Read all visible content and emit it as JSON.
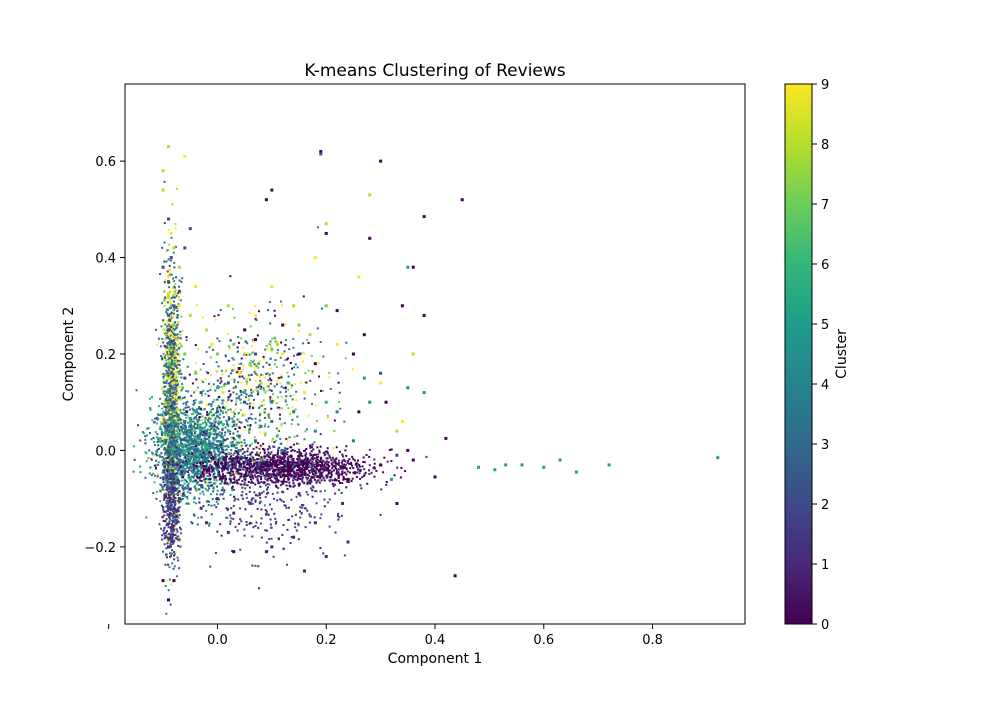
{
  "chart_data": {
    "type": "scatter",
    "title": "K-means Clustering of Reviews",
    "xlabel": "Component 1",
    "ylabel": "Component 2",
    "xlim": [
      -0.17,
      0.97
    ],
    "ylim": [
      -0.36,
      0.76
    ],
    "xticks": [
      -0.2,
      0.0,
      0.2,
      0.4,
      0.6,
      0.8
    ],
    "xtick_labels": [
      "",
      "0.0",
      "0.2",
      "0.4",
      "0.6",
      "0.8"
    ],
    "yticks": [
      -0.2,
      0.0,
      0.2,
      0.4,
      0.6
    ],
    "ytick_labels": [
      "−0.2",
      "0.0",
      "0.2",
      "0.4",
      "0.6"
    ],
    "grid": false,
    "colormap": "viridis",
    "colorbar": {
      "label": "Cluster",
      "min": 0,
      "max": 9,
      "ticks": [
        0,
        1,
        2,
        3,
        4,
        5,
        6,
        7,
        8,
        9
      ],
      "tick_labels": [
        "0",
        "1",
        "2",
        "3",
        "4",
        "5",
        "6",
        "7",
        "8",
        "9"
      ]
    },
    "clusters": [
      {
        "cluster": 0,
        "color": "#440154",
        "points": [
          [
            0.45,
            0.52
          ],
          [
            0.437,
            -0.26
          ],
          [
            0.42,
            0.025
          ],
          [
            0.4,
            -0.055
          ],
          [
            0.38,
            0.485
          ],
          [
            0.36,
            0.38
          ],
          [
            0.33,
            -0.11
          ],
          [
            0.34,
            0.3
          ],
          [
            0.3,
            0.6
          ],
          [
            0.38,
            0.28
          ],
          [
            0.27,
            0.24
          ],
          [
            0.22,
            0.29
          ],
          [
            0.24,
            -0.06
          ],
          [
            0.26,
            0.08
          ],
          [
            0.12,
            0.26
          ],
          [
            0.15,
            0.2
          ],
          [
            0.18,
            0.18
          ],
          [
            0.19,
            0.62
          ],
          [
            0.07,
            0.23
          ],
          [
            0.1,
            0.54
          ],
          [
            0.16,
            -0.25
          ],
          [
            0.05,
            0.25
          ],
          [
            0.03,
            -0.21
          ],
          [
            -0.09,
            -0.31
          ],
          [
            -0.08,
            -0.27
          ],
          [
            -0.1,
            -0.27
          ],
          [
            0.25,
            0.2
          ],
          [
            0.2,
            0.45
          ],
          [
            0.28,
            0.44
          ],
          [
            0.31,
            0.1
          ],
          [
            0.35,
            0.0
          ],
          [
            0.09,
            0.52
          ],
          [
            0.04,
            0.17
          ],
          [
            0.3,
            -0.03
          ],
          [
            0.36,
            -0.02
          ]
        ]
      },
      {
        "cluster": 1,
        "color": "#482878",
        "points": [
          [
            -0.08,
            -0.12
          ],
          [
            -0.08,
            -0.08
          ],
          [
            -0.09,
            -0.2
          ],
          [
            -0.085,
            -0.16
          ],
          [
            -0.07,
            -0.1
          ],
          [
            -0.05,
            -0.08
          ],
          [
            -0.03,
            -0.12
          ],
          [
            0.0,
            -0.1
          ],
          [
            0.03,
            -0.13
          ],
          [
            0.06,
            -0.11
          ],
          [
            0.1,
            -0.2
          ],
          [
            0.14,
            -0.18
          ],
          [
            0.18,
            -0.15
          ],
          [
            0.2,
            -0.22
          ],
          [
            0.24,
            -0.19
          ],
          [
            0.09,
            -0.21
          ],
          [
            0.02,
            -0.17
          ],
          [
            -0.02,
            -0.15
          ],
          [
            0.15,
            -0.09
          ],
          [
            0.23,
            -0.11
          ],
          [
            0.16,
            -0.25
          ]
        ]
      },
      {
        "cluster": 2,
        "color": "#3e4989",
        "points": [
          [
            -0.09,
            0.48
          ],
          [
            -0.085,
            0.4
          ],
          [
            -0.09,
            0.35
          ],
          [
            -0.08,
            0.3
          ],
          [
            -0.09,
            0.25
          ],
          [
            -0.085,
            0.2
          ],
          [
            -0.1,
            0.38
          ],
          [
            -0.07,
            0.33
          ],
          [
            -0.06,
            0.42
          ],
          [
            -0.08,
            0.1
          ],
          [
            -0.09,
            0.05
          ],
          [
            -0.06,
            0.15
          ],
          [
            -0.03,
            0.12
          ],
          [
            0.0,
            0.08
          ],
          [
            0.02,
            0.14
          ],
          [
            0.05,
            0.1
          ],
          [
            0.07,
            0.2
          ],
          [
            -0.05,
            0.46
          ],
          [
            0.19,
            0.615
          ],
          [
            0.3,
            0.16
          ],
          [
            0.33,
            -0.01
          ]
        ]
      },
      {
        "cluster": 3,
        "color": "#31688e",
        "points": [
          [
            -0.09,
            0.28
          ],
          [
            -0.08,
            0.22
          ],
          [
            -0.085,
            0.16
          ],
          [
            -0.07,
            0.11
          ],
          [
            -0.09,
            0.12
          ],
          [
            -0.06,
            0.06
          ],
          [
            -0.04,
            0.02
          ],
          [
            -0.02,
            0.04
          ],
          [
            0.01,
            0.0
          ],
          [
            0.04,
            0.03
          ],
          [
            -0.08,
            0.02
          ],
          [
            -0.09,
            0.0
          ],
          [
            -0.07,
            -0.02
          ],
          [
            -0.05,
            0.05
          ],
          [
            -0.03,
            -0.01
          ],
          [
            0.07,
            0.02
          ],
          [
            0.1,
            0.06
          ]
        ]
      },
      {
        "cluster": 4,
        "color": "#26828e",
        "points": [
          [
            -0.09,
            0.12
          ],
          [
            -0.08,
            0.06
          ],
          [
            -0.07,
            0.0
          ],
          [
            -0.06,
            -0.03
          ],
          [
            -0.04,
            -0.05
          ],
          [
            -0.02,
            -0.02
          ],
          [
            0.0,
            0.01
          ],
          [
            0.02,
            -0.03
          ],
          [
            0.04,
            0.0
          ],
          [
            0.06,
            -0.05
          ],
          [
            0.08,
            0.05
          ],
          [
            0.1,
            0.1
          ],
          [
            0.12,
            0.0
          ],
          [
            0.14,
            0.08
          ],
          [
            0.18,
            0.04
          ],
          [
            0.22,
            0.08
          ],
          [
            0.25,
            0.02
          ],
          [
            0.28,
            0.1
          ],
          [
            0.35,
            0.13
          ],
          [
            0.38,
            0.12
          ]
        ]
      },
      {
        "cluster": 5,
        "color": "#1f9e89",
        "points": [
          [
            0.92,
            -0.015
          ],
          [
            0.72,
            -0.03
          ],
          [
            0.66,
            -0.045
          ],
          [
            0.63,
            -0.02
          ],
          [
            0.6,
            -0.035
          ],
          [
            0.56,
            -0.03
          ],
          [
            0.53,
            -0.03
          ],
          [
            0.51,
            -0.04
          ],
          [
            0.48,
            -0.035
          ],
          [
            0.35,
            0.38
          ],
          [
            0.32,
            -0.06
          ],
          [
            0.27,
            0.15
          ],
          [
            -0.06,
            -0.04
          ],
          [
            -0.04,
            0.08
          ],
          [
            0.0,
            -0.04
          ],
          [
            0.03,
            0.06
          ],
          [
            -0.08,
            0.18
          ]
        ]
      },
      {
        "cluster": 6,
        "color": "#35b779",
        "points": [
          [
            -0.08,
            0.08
          ],
          [
            -0.07,
            0.16
          ],
          [
            -0.06,
            0.0
          ],
          [
            -0.05,
            -0.06
          ],
          [
            -0.03,
            0.1
          ],
          [
            0.0,
            0.13
          ],
          [
            0.02,
            0.04
          ],
          [
            0.05,
            0.12
          ],
          [
            0.08,
            -0.02
          ],
          [
            0.11,
            0.03
          ],
          [
            0.13,
            0.14
          ],
          [
            0.2,
            0.1
          ]
        ]
      },
      {
        "cluster": 7,
        "color": "#6ece58",
        "points": [
          [
            -0.09,
            0.18
          ],
          [
            -0.08,
            0.26
          ],
          [
            -0.06,
            0.2
          ],
          [
            -0.04,
            0.16
          ],
          [
            0.0,
            0.2
          ],
          [
            0.03,
            0.22
          ],
          [
            0.06,
            0.18
          ],
          [
            0.1,
            0.21
          ],
          [
            0.15,
            0.26
          ],
          [
            0.2,
            0.3
          ]
        ]
      },
      {
        "cluster": 8,
        "color": "#b5de2b",
        "points": [
          [
            -0.1,
            0.58
          ],
          [
            -0.1,
            0.54
          ],
          [
            -0.09,
            0.63
          ],
          [
            -0.08,
            0.42
          ],
          [
            -0.09,
            0.32
          ],
          [
            -0.07,
            0.38
          ],
          [
            -0.05,
            0.28
          ],
          [
            -0.02,
            0.25
          ],
          [
            0.02,
            0.3
          ],
          [
            0.05,
            0.2
          ],
          [
            0.08,
            0.14
          ],
          [
            0.11,
            0.22
          ],
          [
            0.14,
            0.3
          ],
          [
            0.17,
            0.24
          ],
          [
            0.2,
            0.47
          ],
          [
            0.28,
            0.53
          ],
          [
            0.33,
            0.04
          ],
          [
            0.36,
            0.2
          ]
        ]
      },
      {
        "cluster": 9,
        "color": "#fde725",
        "points": [
          [
            -0.06,
            0.61
          ],
          [
            -0.085,
            0.45
          ],
          [
            -0.09,
            0.36
          ],
          [
            -0.08,
            0.14
          ],
          [
            -0.07,
            0.3
          ],
          [
            -0.04,
            0.34
          ],
          [
            -0.01,
            0.22
          ],
          [
            0.01,
            0.12
          ],
          [
            0.04,
            0.16
          ],
          [
            0.07,
            0.28
          ],
          [
            0.1,
            0.34
          ],
          [
            0.12,
            0.2
          ],
          [
            0.16,
            0.12
          ],
          [
            0.18,
            0.4
          ],
          [
            0.22,
            0.22
          ],
          [
            0.26,
            0.36
          ],
          [
            0.3,
            0.14
          ],
          [
            0.34,
            0.06
          ]
        ]
      }
    ]
  }
}
